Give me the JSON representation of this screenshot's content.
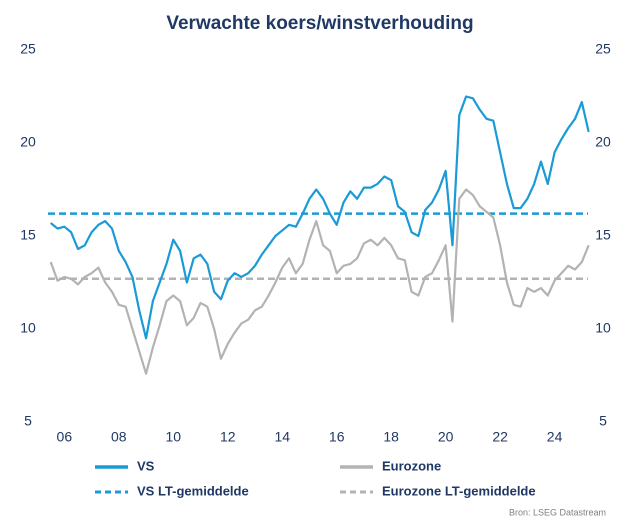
{
  "chart_data": {
    "type": "line",
    "title": "Verwachte koers/winstverhouding",
    "source": "Bron: LSEG Datastream",
    "x": [
      2005.5,
      2005.75,
      2006,
      2006.25,
      2006.5,
      2006.75,
      2007,
      2007.25,
      2007.5,
      2007.75,
      2008,
      2008.25,
      2008.5,
      2008.75,
      2009,
      2009.25,
      2009.5,
      2009.75,
      2010,
      2010.25,
      2010.5,
      2010.75,
      2011,
      2011.25,
      2011.5,
      2011.75,
      2012,
      2012.25,
      2012.5,
      2012.75,
      2013,
      2013.25,
      2013.5,
      2013.75,
      2014,
      2014.25,
      2014.5,
      2014.75,
      2015,
      2015.25,
      2015.5,
      2015.75,
      2016,
      2016.25,
      2016.5,
      2016.75,
      2017,
      2017.25,
      2017.5,
      2017.75,
      2018,
      2018.25,
      2018.5,
      2018.75,
      2019,
      2019.25,
      2019.5,
      2019.75,
      2020,
      2020.25,
      2020.5,
      2020.75,
      2021,
      2021.25,
      2021.5,
      2021.75,
      2022,
      2022.25,
      2022.5,
      2022.75,
      2023,
      2023.25,
      2023.5,
      2023.75,
      2024,
      2024.25,
      2024.5,
      2024.75,
      2025,
      2025.25
    ],
    "series": [
      {
        "name": "VS",
        "color": "#1a9ad6",
        "values": [
          15.7,
          15.4,
          15.5,
          15.2,
          14.3,
          14.5,
          15.2,
          15.6,
          15.8,
          15.4,
          14.2,
          13.6,
          12.8,
          11.0,
          9.5,
          11.5,
          12.5,
          13.5,
          14.8,
          14.2,
          12.5,
          13.8,
          14.0,
          13.5,
          12.0,
          11.6,
          12.6,
          13.0,
          12.8,
          13.0,
          13.4,
          14.0,
          14.5,
          15.0,
          15.3,
          15.6,
          15.5,
          16.2,
          17.0,
          17.5,
          17.0,
          16.2,
          15.6,
          16.8,
          17.4,
          17.0,
          17.6,
          17.6,
          17.8,
          18.2,
          18.0,
          16.6,
          16.3,
          15.2,
          15.0,
          16.4,
          16.8,
          17.5,
          18.5,
          14.5,
          21.5,
          22.5,
          22.4,
          21.8,
          21.3,
          21.2,
          19.5,
          17.8,
          16.5,
          16.5,
          17.0,
          17.8,
          19.0,
          17.8,
          19.5,
          20.2,
          20.8,
          21.3,
          22.2,
          20.6
        ]
      },
      {
        "name": "Eurozone",
        "color": "#b3b3b3",
        "values": [
          13.6,
          12.6,
          12.8,
          12.7,
          12.4,
          12.8,
          13.0,
          13.3,
          12.5,
          12.0,
          11.3,
          11.2,
          10.0,
          8.8,
          7.6,
          9.0,
          10.2,
          11.5,
          11.8,
          11.5,
          10.2,
          10.6,
          11.4,
          11.2,
          10.0,
          8.4,
          9.2,
          9.8,
          10.3,
          10.5,
          11.0,
          11.2,
          11.8,
          12.5,
          13.3,
          13.8,
          13.0,
          13.5,
          14.8,
          15.8,
          14.5,
          14.2,
          13.0,
          13.4,
          13.5,
          13.8,
          14.6,
          14.8,
          14.5,
          14.9,
          14.5,
          13.8,
          13.7,
          12.0,
          11.8,
          12.8,
          13.0,
          13.7,
          14.5,
          10.4,
          17.0,
          17.5,
          17.2,
          16.6,
          16.3,
          16.0,
          14.5,
          12.5,
          11.3,
          11.2,
          12.2,
          12.0,
          12.2,
          11.8,
          12.6,
          13.0,
          13.4,
          13.2,
          13.6,
          14.5
        ]
      }
    ],
    "reference_lines": [
      {
        "name": "VS LT-gemiddelde",
        "value": 16.2,
        "color": "#1a9ad6"
      },
      {
        "name": "Eurozone LT-gemiddelde",
        "value": 12.7,
        "color": "#b3b3b3"
      }
    ],
    "xlim": [
      2005.4,
      2025.3
    ],
    "xticks": [
      {
        "value": 2006,
        "label": "06"
      },
      {
        "value": 2008,
        "label": "08"
      },
      {
        "value": 2010,
        "label": "10"
      },
      {
        "value": 2012,
        "label": "12"
      },
      {
        "value": 2014,
        "label": "14"
      },
      {
        "value": 2016,
        "label": "16"
      },
      {
        "value": 2018,
        "label": "18"
      },
      {
        "value": 2020,
        "label": "20"
      },
      {
        "value": 2022,
        "label": "22"
      },
      {
        "value": 2024,
        "label": "24"
      }
    ],
    "ylim": [
      5,
      25
    ],
    "yticks": [
      5,
      10,
      15,
      20,
      25
    ],
    "y2lim": [
      5,
      25
    ],
    "y2ticks": [
      5,
      10,
      15,
      20,
      25
    ],
    "grid": false
  }
}
